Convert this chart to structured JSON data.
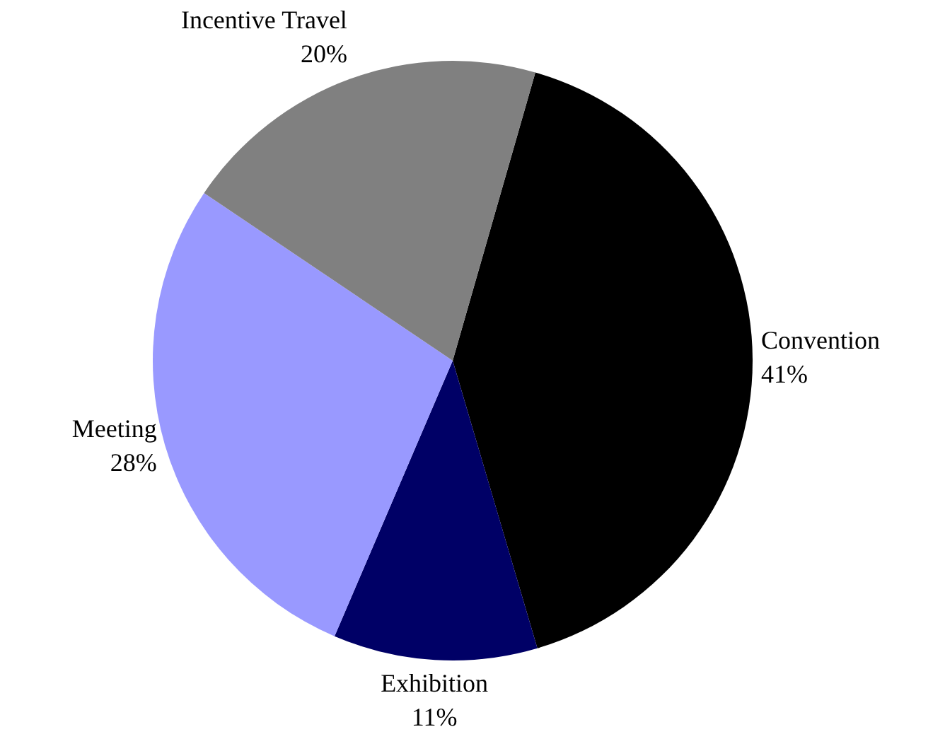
{
  "chart_data": {
    "type": "pie",
    "categories": [
      "Convention",
      "Exhibition",
      "Meeting",
      "Incentive Travel"
    ],
    "values": [
      41,
      11,
      28,
      20
    ],
    "colors": [
      "#000000",
      "#000066",
      "#9999ff",
      "#808080"
    ],
    "value_labels": [
      "41%",
      "11%",
      "28%",
      "20%"
    ],
    "legend": false
  }
}
